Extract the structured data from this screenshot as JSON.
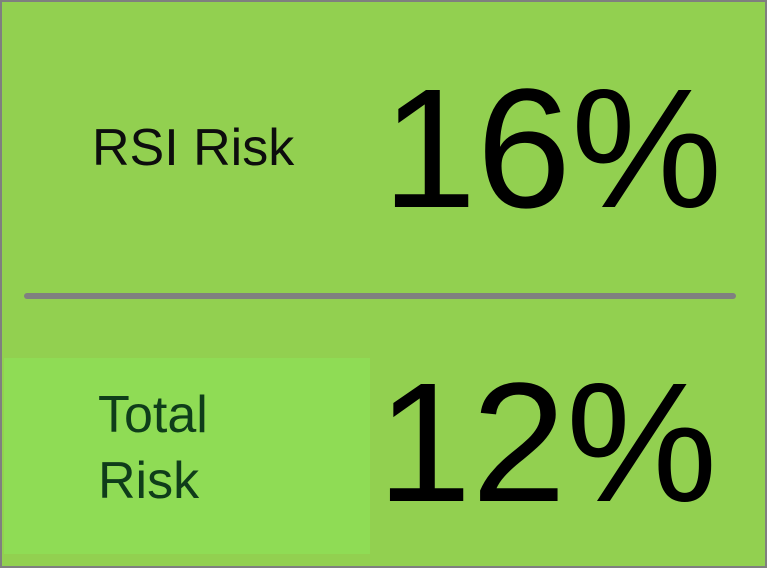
{
  "rsi": {
    "label": "RSI Risk",
    "value": "16%"
  },
  "total": {
    "label_line1": "Total",
    "label_line2": "Risk",
    "value": "12%"
  },
  "colors": {
    "background": "#92d050",
    "border": "#7f7f7f",
    "divider": "#808080",
    "text": "#000000"
  }
}
